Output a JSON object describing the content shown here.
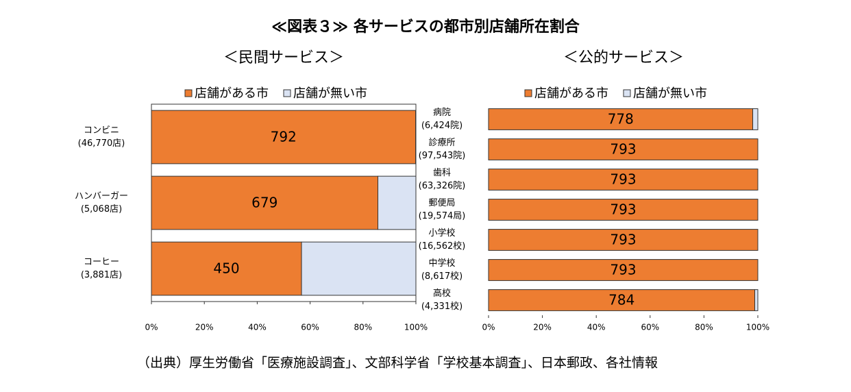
{
  "title": "≪図表３≫ 各サービスの都市別店舗所在割合",
  "source": "（出典）厚生労働省「医療施設調査」、文部科学省「学校基本調査」、日本郵政、各社情報",
  "chart_data": [
    {
      "type": "bar",
      "orientation": "horizontal",
      "stacked": true,
      "title": "＜民間サービス＞",
      "categories": [
        "コンビニ\n(46,770店)",
        "ハンバーガー\n(5,068店)",
        "コーヒー\n(3,881店)"
      ],
      "series": [
        {
          "name": "店舗がある市",
          "color": "#ed7d31",
          "values": [
            792,
            679,
            450
          ]
        },
        {
          "name": "店舗が無い市",
          "color": "#dae3f3",
          "values": [
            1,
            114,
            343
          ]
        }
      ],
      "xlim": [
        0,
        793
      ],
      "xticks": [
        {
          "value": 0,
          "label": "0%"
        },
        {
          "value": 158.6,
          "label": "20%"
        },
        {
          "value": 317.2,
          "label": "40%"
        },
        {
          "value": 475.8,
          "label": "60%"
        },
        {
          "value": 634.4,
          "label": "80%"
        },
        {
          "value": 793,
          "label": "100%"
        }
      ],
      "legend": "top"
    },
    {
      "type": "bar",
      "orientation": "horizontal",
      "stacked": true,
      "title": "＜公的サービス＞",
      "categories": [
        "病院\n(6,424院)",
        "診療所\n(97,543院)",
        "歯科\n(63,326院)",
        "郵便局\n(19,574局)",
        "小学校\n(16,562校)",
        "中学校\n(8,617校)",
        "高校\n(4,331校)"
      ],
      "series": [
        {
          "name": "店舗がある市",
          "color": "#ed7d31",
          "values": [
            778,
            793,
            793,
            793,
            793,
            793,
            784
          ]
        },
        {
          "name": "店舗が無い市",
          "color": "#dae3f3",
          "values": [
            15,
            0,
            0,
            0,
            0,
            0,
            9
          ]
        }
      ],
      "xlim": [
        0,
        793
      ],
      "xticks": [
        {
          "value": 0,
          "label": "0%"
        },
        {
          "value": 158.6,
          "label": "20%"
        },
        {
          "value": 317.2,
          "label": "40%"
        },
        {
          "value": 475.8,
          "label": "60%"
        },
        {
          "value": 634.4,
          "label": "80%"
        },
        {
          "value": 793,
          "label": "100%"
        }
      ],
      "legend": "top"
    }
  ]
}
